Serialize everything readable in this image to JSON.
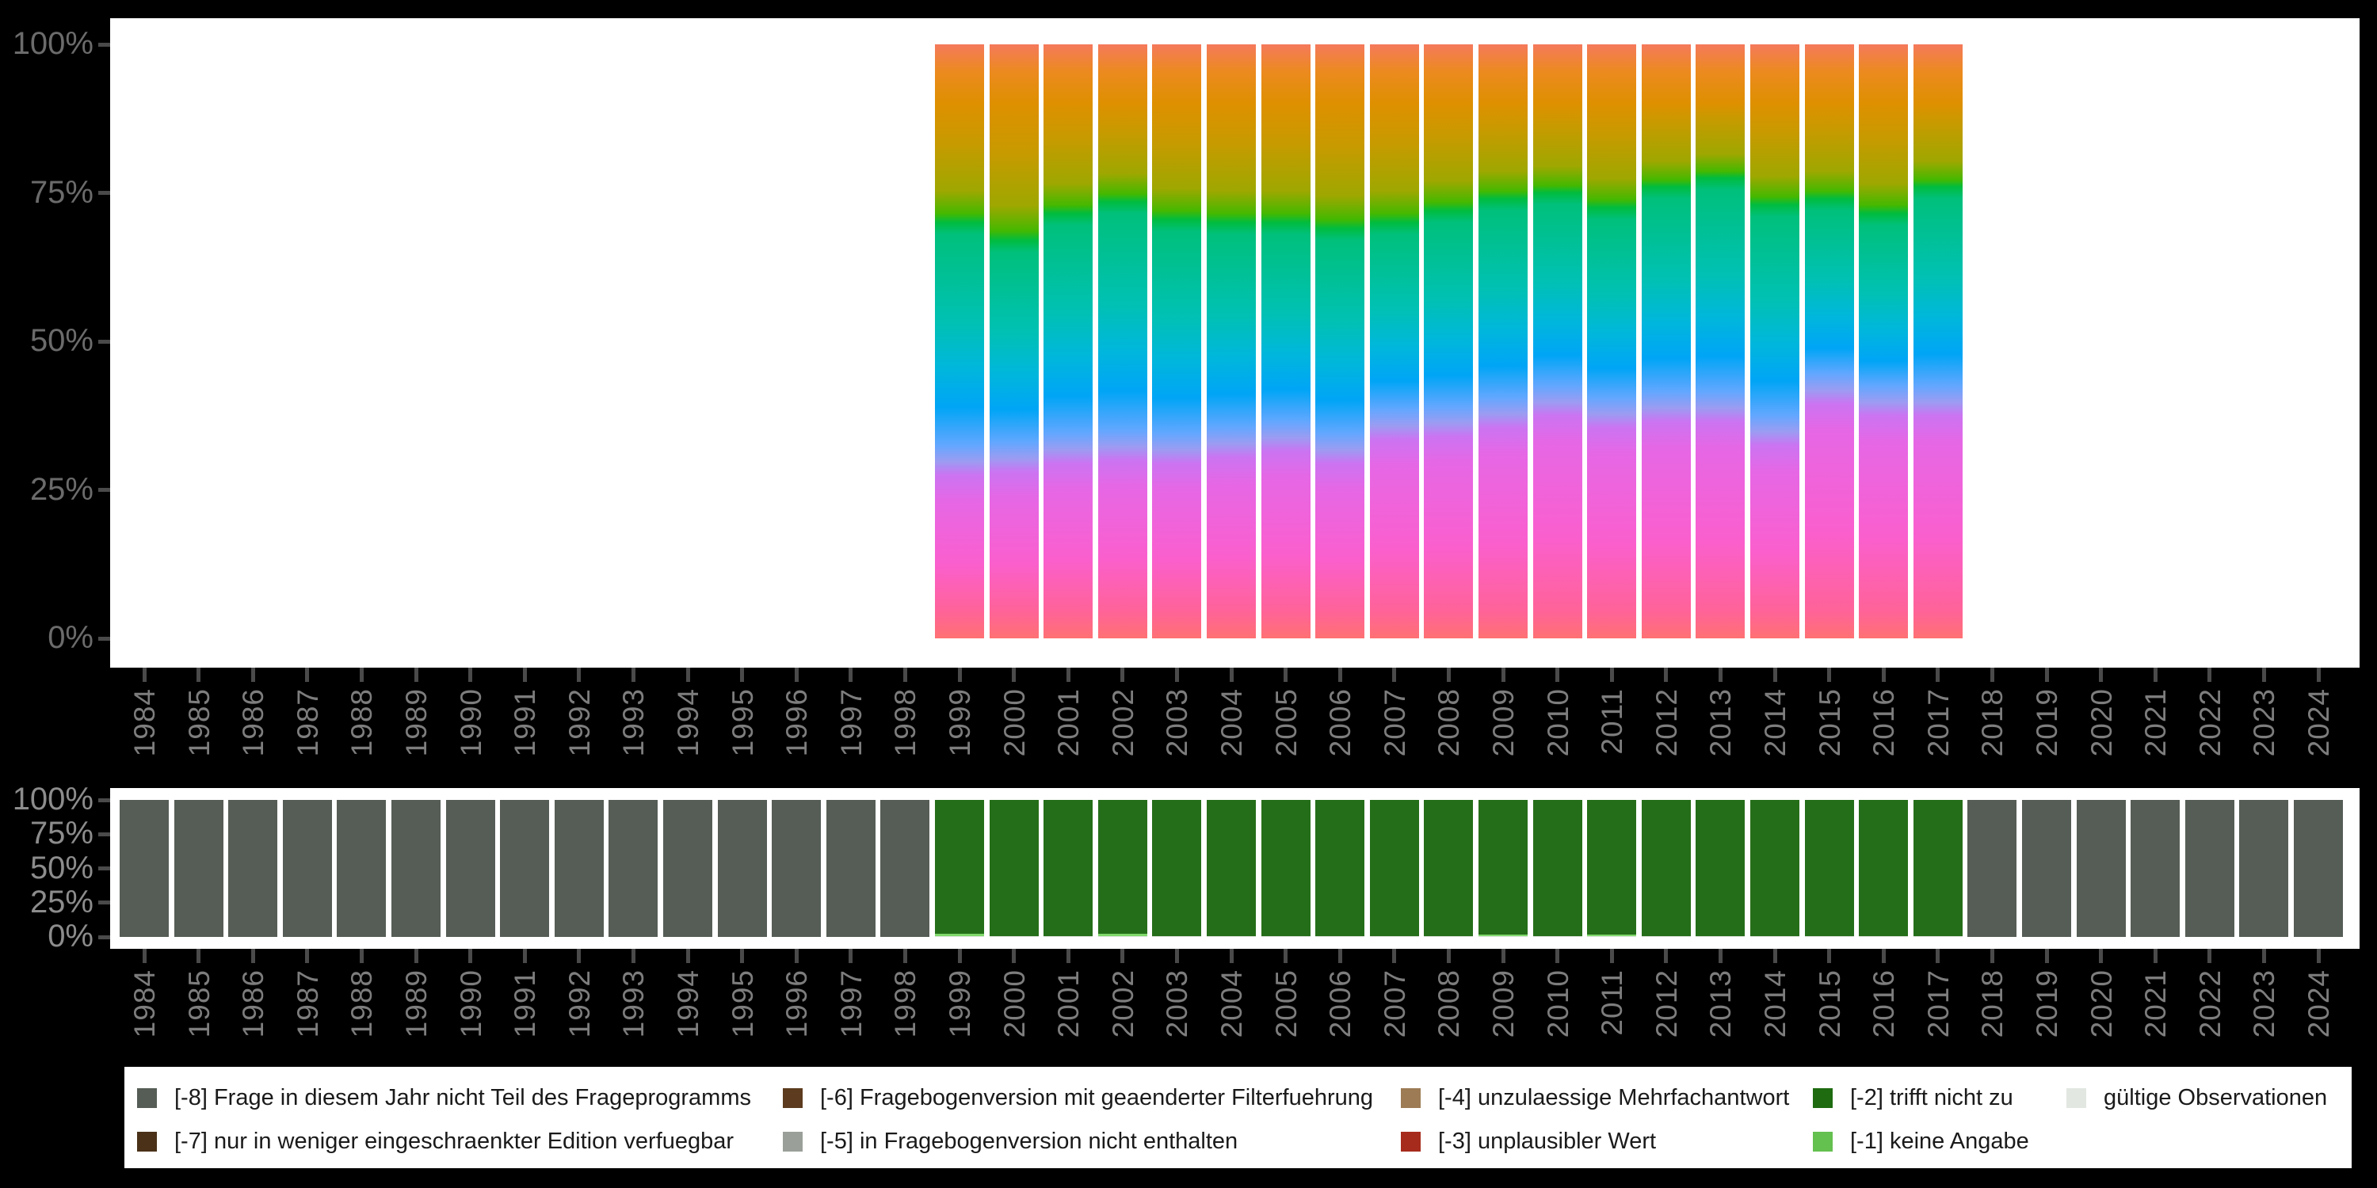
{
  "background_color": "#000000",
  "panel_color": "#ffffff",
  "axis": {
    "tick_color": "#4A4A4A",
    "top_y_label_color": "#6B6B6B",
    "bottom_y_label_color": "#8C8C8C",
    "year_label_color": "#7D7D7D",
    "y_ticks": [
      "100%",
      "75%",
      "50%",
      "25%",
      "0%"
    ]
  },
  "years": [
    "1984",
    "1985",
    "1986",
    "1987",
    "1988",
    "1989",
    "1990",
    "1991",
    "1992",
    "1993",
    "1994",
    "1995",
    "1996",
    "1997",
    "1998",
    "1999",
    "2000",
    "2001",
    "2002",
    "2003",
    "2004",
    "2005",
    "2006",
    "2007",
    "2008",
    "2009",
    "2010",
    "2011",
    "2012",
    "2013",
    "2014",
    "2015",
    "2016",
    "2017",
    "2018",
    "2019",
    "2020",
    "2021",
    "2022",
    "2023",
    "2024"
  ],
  "code_colors": {
    "-8": "#565D56",
    "-7": "#4A3118",
    "-6": "#5C3B1E",
    "-5": "#9AA099",
    "-4": "#9C7B55",
    "-3": "#A62B1C",
    "-2": "#256E19",
    "-1": "#7FD96B",
    "valid": "#DEE3DD"
  },
  "chart_data": [
    {
      "type": "bar",
      "subtype": "stacked-100percent-rainbow-gradient",
      "y_axis": {
        "ticks": [
          "100%",
          "75%",
          "50%",
          "25%",
          "0%"
        ],
        "range_pct": [
          0,
          100
        ]
      },
      "x_range_with_bars": [
        1999,
        2017
      ],
      "hue_ramp_top_to_bottom": [
        "#F5795C",
        "#EC8A20",
        "#DE9000",
        "#C89A00",
        "#9FA700",
        "#45B800",
        "#00BC3F",
        "#00C07C",
        "#00C1B3",
        "#00B7DB",
        "#00A5F6",
        "#63A7FF",
        "#9B9CF2",
        "#CB74F2",
        "#E667E5",
        "#FA5FCE",
        "#FF6398",
        "#FF7173"
      ],
      "bars": [
        {
          "year": 1999,
          "green_pct_from_top": 30.0,
          "violet_pct_from_top": 72.0
        },
        {
          "year": 2000,
          "green_pct_from_top": 33.0,
          "violet_pct_from_top": 71.5
        },
        {
          "year": 2001,
          "green_pct_from_top": 28.5,
          "violet_pct_from_top": 70.0
        },
        {
          "year": 2002,
          "green_pct_from_top": 26.5,
          "violet_pct_from_top": 69.5
        },
        {
          "year": 2003,
          "green_pct_from_top": 29.5,
          "violet_pct_from_top": 70.0
        },
        {
          "year": 2004,
          "green_pct_from_top": 30.0,
          "violet_pct_from_top": 69.0
        },
        {
          "year": 2005,
          "green_pct_from_top": 30.0,
          "violet_pct_from_top": 68.0
        },
        {
          "year": 2006,
          "green_pct_from_top": 31.0,
          "violet_pct_from_top": 70.0
        },
        {
          "year": 2007,
          "green_pct_from_top": 30.0,
          "violet_pct_from_top": 66.0
        },
        {
          "year": 2008,
          "green_pct_from_top": 28.0,
          "violet_pct_from_top": 65.5
        },
        {
          "year": 2009,
          "green_pct_from_top": 26.0,
          "violet_pct_from_top": 64.0
        },
        {
          "year": 2010,
          "green_pct_from_top": 25.0,
          "violet_pct_from_top": 62.0
        },
        {
          "year": 2011,
          "green_pct_from_top": 27.5,
          "violet_pct_from_top": 64.0
        },
        {
          "year": 2012,
          "green_pct_from_top": 24.0,
          "violet_pct_from_top": 63.0
        },
        {
          "year": 2013,
          "green_pct_from_top": 22.5,
          "violet_pct_from_top": 63.0
        },
        {
          "year": 2014,
          "green_pct_from_top": 27.0,
          "violet_pct_from_top": 67.0
        },
        {
          "year": 2015,
          "green_pct_from_top": 26.0,
          "violet_pct_from_top": 60.0
        },
        {
          "year": 2016,
          "green_pct_from_top": 28.5,
          "violet_pct_from_top": 62.0
        },
        {
          "year": 2017,
          "green_pct_from_top": 24.0,
          "violet_pct_from_top": 62.0
        }
      ]
    },
    {
      "type": "bar",
      "subtype": "stacked-100percent",
      "y_axis": {
        "ticks": [
          "100%",
          "75%",
          "50%",
          "25%",
          "0%"
        ],
        "range_pct": [
          0,
          100
        ]
      },
      "bars": [
        {
          "year": 1984,
          "segments": [
            {
              "key": "-8",
              "pct": 100
            }
          ]
        },
        {
          "year": 1985,
          "segments": [
            {
              "key": "-8",
              "pct": 100
            }
          ]
        },
        {
          "year": 1986,
          "segments": [
            {
              "key": "-8",
              "pct": 100
            }
          ]
        },
        {
          "year": 1987,
          "segments": [
            {
              "key": "-8",
              "pct": 100
            }
          ]
        },
        {
          "year": 1988,
          "segments": [
            {
              "key": "-8",
              "pct": 100
            }
          ]
        },
        {
          "year": 1989,
          "segments": [
            {
              "key": "-8",
              "pct": 100
            }
          ]
        },
        {
          "year": 1990,
          "segments": [
            {
              "key": "-8",
              "pct": 100
            }
          ]
        },
        {
          "year": 1991,
          "segments": [
            {
              "key": "-8",
              "pct": 100
            }
          ]
        },
        {
          "year": 1992,
          "segments": [
            {
              "key": "-8",
              "pct": 100
            }
          ]
        },
        {
          "year": 1993,
          "segments": [
            {
              "key": "-8",
              "pct": 100
            }
          ]
        },
        {
          "year": 1994,
          "segments": [
            {
              "key": "-8",
              "pct": 100
            }
          ]
        },
        {
          "year": 1995,
          "segments": [
            {
              "key": "-8",
              "pct": 100
            }
          ]
        },
        {
          "year": 1996,
          "segments": [
            {
              "key": "-8",
              "pct": 100
            }
          ]
        },
        {
          "year": 1997,
          "segments": [
            {
              "key": "-8",
              "pct": 100
            }
          ]
        },
        {
          "year": 1998,
          "segments": [
            {
              "key": "-8",
              "pct": 100
            }
          ]
        },
        {
          "year": 1999,
          "segments": [
            {
              "key": "-2",
              "pct": 97.6
            },
            {
              "key": "-1",
              "pct": 1.7
            },
            {
              "key": "valid",
              "pct": 0.7
            }
          ]
        },
        {
          "year": 2000,
          "segments": [
            {
              "key": "-2",
              "pct": 99.3
            },
            {
              "key": "valid",
              "pct": 0.7
            }
          ]
        },
        {
          "year": 2001,
          "segments": [
            {
              "key": "-2",
              "pct": 99.3
            },
            {
              "key": "valid",
              "pct": 0.7
            }
          ]
        },
        {
          "year": 2002,
          "segments": [
            {
              "key": "-2",
              "pct": 97.9
            },
            {
              "key": "-1",
              "pct": 1.4
            },
            {
              "key": "valid",
              "pct": 0.7
            }
          ]
        },
        {
          "year": 2003,
          "segments": [
            {
              "key": "-2",
              "pct": 99.3
            },
            {
              "key": "valid",
              "pct": 0.7
            }
          ]
        },
        {
          "year": 2004,
          "segments": [
            {
              "key": "-2",
              "pct": 99.3
            },
            {
              "key": "valid",
              "pct": 0.7
            }
          ]
        },
        {
          "year": 2005,
          "segments": [
            {
              "key": "-2",
              "pct": 99.3
            },
            {
              "key": "valid",
              "pct": 0.7
            }
          ]
        },
        {
          "year": 2006,
          "segments": [
            {
              "key": "-2",
              "pct": 99.3
            },
            {
              "key": "valid",
              "pct": 0.7
            }
          ]
        },
        {
          "year": 2007,
          "segments": [
            {
              "key": "-2",
              "pct": 99.3
            },
            {
              "key": "valid",
              "pct": 0.7
            }
          ]
        },
        {
          "year": 2008,
          "segments": [
            {
              "key": "-2",
              "pct": 99.3
            },
            {
              "key": "valid",
              "pct": 0.7
            }
          ]
        },
        {
          "year": 2009,
          "segments": [
            {
              "key": "-2",
              "pct": 98.2
            },
            {
              "key": "-1",
              "pct": 1.1
            },
            {
              "key": "valid",
              "pct": 0.7
            }
          ]
        },
        {
          "year": 2010,
          "segments": [
            {
              "key": "-2",
              "pct": 99.3
            },
            {
              "key": "valid",
              "pct": 0.7
            }
          ]
        },
        {
          "year": 2011,
          "segments": [
            {
              "key": "-2",
              "pct": 98.3
            },
            {
              "key": "-1",
              "pct": 1.0
            },
            {
              "key": "valid",
              "pct": 0.7
            }
          ]
        },
        {
          "year": 2012,
          "segments": [
            {
              "key": "-2",
              "pct": 99.3
            },
            {
              "key": "valid",
              "pct": 0.7
            }
          ]
        },
        {
          "year": 2013,
          "segments": [
            {
              "key": "-2",
              "pct": 99.3
            },
            {
              "key": "valid",
              "pct": 0.7
            }
          ]
        },
        {
          "year": 2014,
          "segments": [
            {
              "key": "-2",
              "pct": 99.3
            },
            {
              "key": "valid",
              "pct": 0.7
            }
          ]
        },
        {
          "year": 2015,
          "segments": [
            {
              "key": "-2",
              "pct": 99.3
            },
            {
              "key": "valid",
              "pct": 0.7
            }
          ]
        },
        {
          "year": 2016,
          "segments": [
            {
              "key": "-2",
              "pct": 99.3
            },
            {
              "key": "valid",
              "pct": 0.7
            }
          ]
        },
        {
          "year": 2017,
          "segments": [
            {
              "key": "-2",
              "pct": 99.3
            },
            {
              "key": "valid",
              "pct": 0.7
            }
          ]
        },
        {
          "year": 2018,
          "segments": [
            {
              "key": "-8",
              "pct": 100
            }
          ]
        },
        {
          "year": 2019,
          "segments": [
            {
              "key": "-8",
              "pct": 100
            }
          ]
        },
        {
          "year": 2020,
          "segments": [
            {
              "key": "-8",
              "pct": 100
            }
          ]
        },
        {
          "year": 2021,
          "segments": [
            {
              "key": "-8",
              "pct": 100
            }
          ]
        },
        {
          "year": 2022,
          "segments": [
            {
              "key": "-8",
              "pct": 100
            }
          ]
        },
        {
          "year": 2023,
          "segments": [
            {
              "key": "-8",
              "pct": 100
            }
          ]
        },
        {
          "year": 2024,
          "segments": [
            {
              "key": "-8",
              "pct": 100
            }
          ]
        }
      ]
    }
  ],
  "legend": {
    "background": "#ffffff",
    "items": [
      {
        "row": 0,
        "col": 0,
        "color": "#565D56",
        "label": "[-8] Frage in diesem Jahr nicht Teil des Frageprogramms"
      },
      {
        "row": 0,
        "col": 1,
        "color": "#5C3B1E",
        "label": "[-6] Fragebogenversion mit geaenderter Filterfuehrung"
      },
      {
        "row": 0,
        "col": 2,
        "color": "#9C7B55",
        "label": "[-4] unzulaessige Mehrfachantwort"
      },
      {
        "row": 0,
        "col": 3,
        "color": "#1E6B10",
        "label": "[-2] trifft nicht zu"
      },
      {
        "row": 0,
        "col": 4,
        "color": "#E3E7E2",
        "label": "gültige Observationen"
      },
      {
        "row": 1,
        "col": 0,
        "color": "#4A3118",
        "label": "[-7] nur in weniger eingeschraenkter Edition verfuegbar"
      },
      {
        "row": 1,
        "col": 1,
        "color": "#9AA099",
        "label": "[-5] in Fragebogenversion nicht enthalten"
      },
      {
        "row": 1,
        "col": 2,
        "color": "#A62B1C",
        "label": "[-3] unplausibler Wert"
      },
      {
        "row": 1,
        "col": 3,
        "color": "#64C04F",
        "label": "[-1] keine Angabe"
      }
    ]
  }
}
